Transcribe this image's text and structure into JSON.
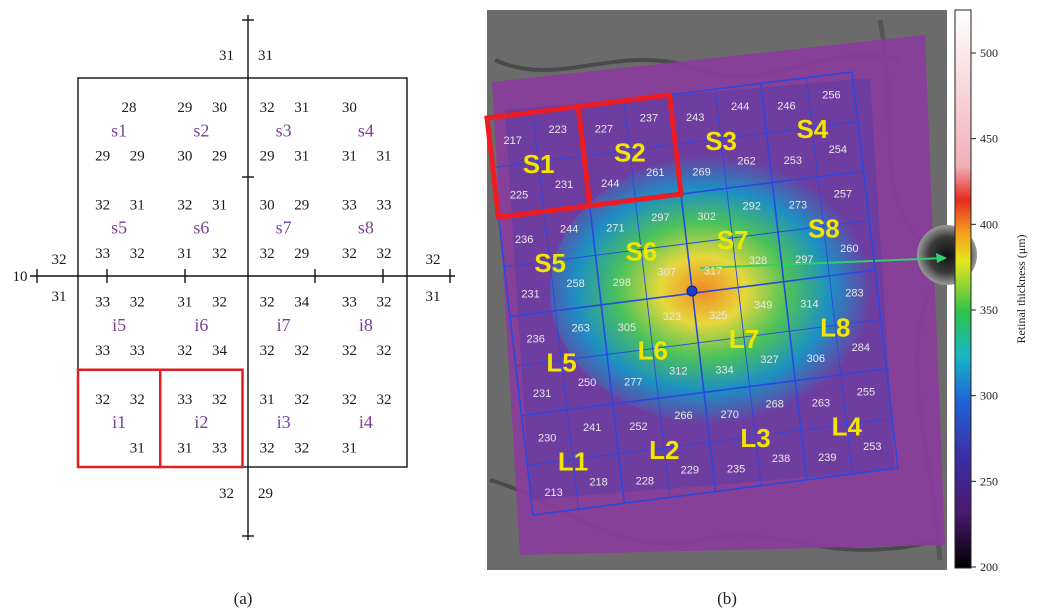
{
  "captions": {
    "a": "(a)",
    "b": "(b)"
  },
  "panel_a": {
    "left_label": "10",
    "top": [
      "31",
      "31"
    ],
    "bottom": [
      "32",
      "29"
    ],
    "axis_left": [
      "32",
      "31"
    ],
    "axis_right": [
      "32",
      "31"
    ],
    "highlighted": [
      "i1",
      "i2"
    ],
    "cells": [
      {
        "label": "s1",
        "vals": [
          "28",
          "29",
          "29"
        ]
      },
      {
        "label": "s2",
        "vals": [
          "29",
          "30",
          "30",
          "29"
        ]
      },
      {
        "label": "s3",
        "vals": [
          "32",
          "31",
          "29",
          "31"
        ]
      },
      {
        "label": "s4",
        "vals": [
          "30",
          "31",
          "31"
        ]
      },
      {
        "label": "s5",
        "vals": [
          "32",
          "31",
          "33",
          "32"
        ]
      },
      {
        "label": "s6",
        "vals": [
          "32",
          "31",
          "31",
          "32"
        ]
      },
      {
        "label": "s7",
        "vals": [
          "30",
          "29",
          "32",
          "29"
        ]
      },
      {
        "label": "s8",
        "vals": [
          "33",
          "33",
          "32",
          "32"
        ]
      },
      {
        "label": "i5",
        "vals": [
          "33",
          "32",
          "33",
          "33"
        ]
      },
      {
        "label": "i6",
        "vals": [
          "31",
          "32",
          "32",
          "34"
        ]
      },
      {
        "label": "i7",
        "vals": [
          "32",
          "34",
          "32",
          "32"
        ]
      },
      {
        "label": "i8",
        "vals": [
          "33",
          "32",
          "32",
          "32"
        ]
      },
      {
        "label": "i1",
        "vals": [
          "32",
          "32",
          "31"
        ]
      },
      {
        "label": "i2",
        "vals": [
          "33",
          "32",
          "31",
          "33"
        ]
      },
      {
        "label": "i3",
        "vals": [
          "31",
          "32",
          "32",
          "32"
        ]
      },
      {
        "label": "i4",
        "vals": [
          "32",
          "32",
          "31"
        ]
      }
    ]
  },
  "panel_b": {
    "colorbar": {
      "title": "Retinal thickness (μm)",
      "ticks": [
        "500",
        "450",
        "400",
        "350",
        "300",
        "250",
        "200"
      ]
    },
    "highlighted": [
      "S1",
      "S2"
    ],
    "regions": [
      {
        "label": "S1",
        "vals": [
          "217",
          "223",
          "225",
          "231"
        ]
      },
      {
        "label": "S2",
        "vals": [
          "227",
          "237",
          "244",
          "261"
        ]
      },
      {
        "label": "S3",
        "vals": [
          "243",
          "244",
          "269",
          "262"
        ]
      },
      {
        "label": "S4",
        "vals": [
          "246",
          "256",
          "253",
          "254"
        ]
      },
      {
        "label": "S5",
        "vals": [
          "236",
          "244",
          "231",
          "258"
        ]
      },
      {
        "label": "S6",
        "vals": [
          "271",
          "297",
          "298",
          "307"
        ]
      },
      {
        "label": "S7",
        "vals": [
          "302",
          "292",
          "317",
          "328"
        ]
      },
      {
        "label": "S8",
        "vals": [
          "273",
          "257",
          "297",
          "260"
        ]
      },
      {
        "label": "L5",
        "vals": [
          "236",
          "263",
          "231",
          "250"
        ]
      },
      {
        "label": "L6",
        "vals": [
          "305",
          "323",
          "277",
          "312"
        ]
      },
      {
        "label": "L7",
        "vals": [
          "325",
          "349",
          "334",
          "327"
        ]
      },
      {
        "label": "L8",
        "vals": [
          "314",
          "283",
          "306",
          "284"
        ]
      },
      {
        "label": "L1",
        "vals": [
          "230",
          "241",
          "213",
          "218"
        ]
      },
      {
        "label": "L2",
        "vals": [
          "252",
          "266",
          "228",
          "229"
        ]
      },
      {
        "label": "L3",
        "vals": [
          "270",
          "268",
          "235",
          "238"
        ]
      },
      {
        "label": "L4",
        "vals": [
          "263",
          "255",
          "239",
          "253"
        ]
      }
    ]
  }
}
